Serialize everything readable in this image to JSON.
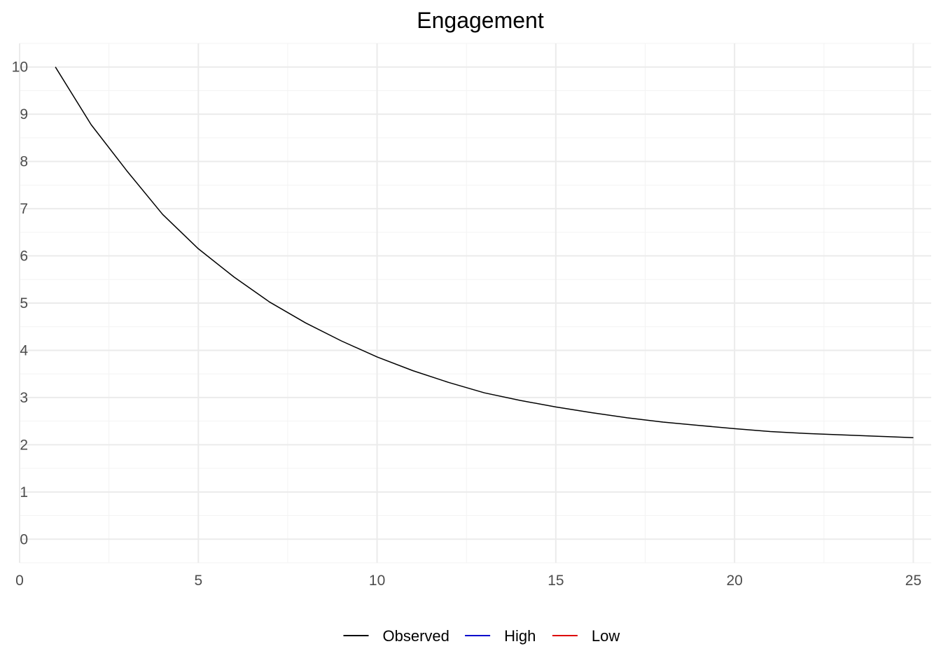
{
  "chart_data": {
    "type": "line",
    "title": "Engagement",
    "xlabel": "",
    "ylabel": "",
    "xlim": [
      0,
      25.5
    ],
    "ylim": [
      -0.5,
      10.5
    ],
    "x_ticks": [
      0,
      5,
      10,
      15,
      20,
      25
    ],
    "y_ticks": [
      0,
      1,
      2,
      3,
      4,
      5,
      6,
      7,
      8,
      9,
      10
    ],
    "grid": true,
    "legend_position": "bottom",
    "series": [
      {
        "name": "Observed",
        "color": "#000000",
        "x": [
          1,
          2,
          3,
          4,
          5,
          6,
          7,
          8,
          9,
          10,
          11,
          12,
          13,
          14,
          15,
          16,
          17,
          18,
          19,
          20,
          21,
          22,
          23,
          24,
          25
        ],
        "y": [
          10.0,
          8.78,
          7.8,
          6.88,
          6.15,
          5.55,
          5.02,
          4.58,
          4.2,
          3.86,
          3.57,
          3.32,
          3.1,
          2.94,
          2.8,
          2.68,
          2.57,
          2.48,
          2.41,
          2.34,
          2.28,
          2.24,
          2.21,
          2.18,
          2.15
        ]
      },
      {
        "name": "High",
        "color": "#0000cc",
        "x": [],
        "y": []
      },
      {
        "name": "Low",
        "color": "#dd0000",
        "x": [],
        "y": []
      }
    ]
  }
}
